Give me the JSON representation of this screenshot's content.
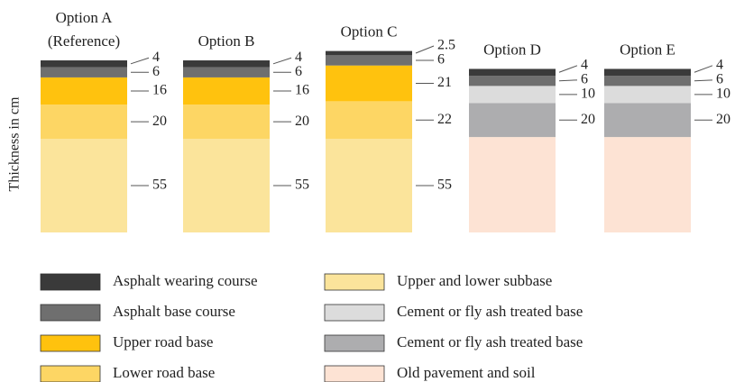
{
  "chart_data": {
    "type": "stacked_layers",
    "y_label": "Thickness in cm",
    "categories": [
      "Option A\n(Reference)",
      "Option B",
      "Option C",
      "Option D",
      "Option E"
    ],
    "ylim": [
      0,
      110
    ],
    "series": [
      {
        "name": "Asphalt wearing course",
        "color": "#3a3a3a",
        "values": [
          4,
          4,
          2.5,
          4,
          4
        ],
        "value_labels": [
          "4",
          "4",
          "2.5",
          "4",
          "4"
        ]
      },
      {
        "name": "Asphalt base course",
        "color": "#6f6f6f",
        "values": [
          6,
          6,
          6,
          6,
          6
        ],
        "value_labels": [
          "6",
          "6",
          "6",
          "6",
          "6"
        ]
      },
      {
        "name": "Upper road base",
        "color": "#ffc20e",
        "values": [
          16,
          16,
          21,
          null,
          null
        ],
        "value_labels": [
          "16",
          "16",
          "21",
          null,
          null
        ]
      },
      {
        "name": "Lower road base",
        "color": "#fdd664",
        "values": [
          20,
          20,
          22,
          null,
          null
        ],
        "value_labels": [
          "20",
          "20",
          "22",
          null,
          null
        ]
      },
      {
        "name": "Upper and lower subbase",
        "color": "#fbe49b",
        "values": [
          55,
          55,
          55,
          null,
          null
        ],
        "value_labels": [
          "55",
          "55",
          "55",
          null,
          null
        ]
      },
      {
        "name": "Cement or fly ash treated base",
        "color": "#dcdcdc",
        "values": [
          null,
          null,
          null,
          10,
          10
        ],
        "value_labels": [
          null,
          null,
          null,
          "10",
          "10"
        ]
      },
      {
        "name": "Cement or fly ash treated base",
        "color": "#adadaf",
        "values": [
          null,
          null,
          null,
          20,
          20
        ],
        "value_labels": [
          null,
          null,
          null,
          "20",
          "20"
        ]
      },
      {
        "name": "Old pavement and soil",
        "color": "#fde3d4",
        "values": [
          null,
          null,
          null,
          56,
          56
        ]
      }
    ]
  }
}
